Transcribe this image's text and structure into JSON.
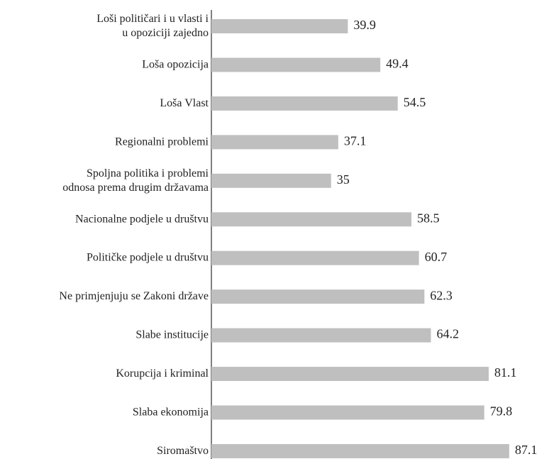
{
  "chart_data": {
    "type": "bar",
    "orientation": "horizontal",
    "categories": [
      "Loši političari i u vlasti i\nu opoziciji zajedno",
      "Loša opozicija",
      "Loša Vlast",
      "Regionalni problemi",
      "Spoljna politika i problemi\nodnosa prema drugim državama",
      "Nacionalne podjele u društvu",
      "Političke podjele u društvu",
      "Ne primjenjuju se Zakoni države",
      "Slabe institucije",
      "Korupcija i kriminal",
      "Slaba ekonomija",
      "Siromaštvo"
    ],
    "values": [
      39.9,
      49.4,
      54.5,
      37.1,
      35,
      58.5,
      60.7,
      62.3,
      64.2,
      81.1,
      79.8,
      87.1
    ],
    "color": "#bfbfbf",
    "xlim": [
      0,
      90
    ]
  }
}
